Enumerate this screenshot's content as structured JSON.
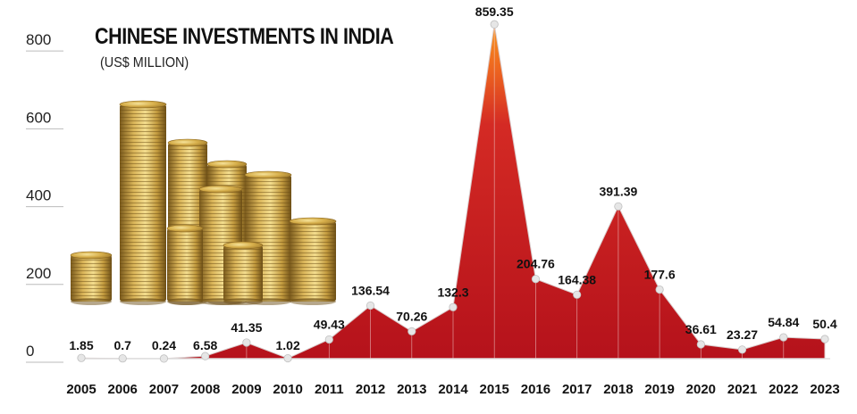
{
  "chart_data": {
    "type": "area",
    "title": "CHINESE INVESTMENTS IN INDIA",
    "subtitle": "(US$ MILLION)",
    "xlabel": "",
    "ylabel": "",
    "ylim": [
      0,
      860
    ],
    "yticks": [
      0,
      200,
      400,
      600,
      800
    ],
    "grid": false,
    "categories": [
      "2005",
      "2006",
      "2007",
      "2008",
      "2009",
      "2010",
      "2011",
      "2012",
      "2013",
      "2014",
      "2015",
      "2016",
      "2017",
      "2018",
      "2019",
      "2020",
      "2021",
      "2022",
      "2023"
    ],
    "values": [
      1.85,
      0.7,
      0.24,
      6.58,
      41.35,
      1.02,
      49.43,
      136.54,
      70.26,
      132.3,
      859.35,
      204.76,
      164.38,
      391.39,
      177.6,
      36.61,
      23.27,
      54.84,
      50.4
    ],
    "value_labels": [
      "1.85",
      "0.7",
      "0.24",
      "6.58",
      "41.35",
      "1.02",
      "49.43",
      "136.54",
      "70.26",
      "132.3",
      "859.35",
      "204.76",
      "164.38",
      "391.39",
      "177.6",
      "36.61",
      "23.27",
      "54.84",
      "50.4"
    ],
    "colors": {
      "area_base": "#c8102e",
      "area_highlight": "#f7941d",
      "marker": "#e6e6e6",
      "tick_line": "#bbbbbb"
    },
    "decoration": "coin-stacks-illustration"
  }
}
